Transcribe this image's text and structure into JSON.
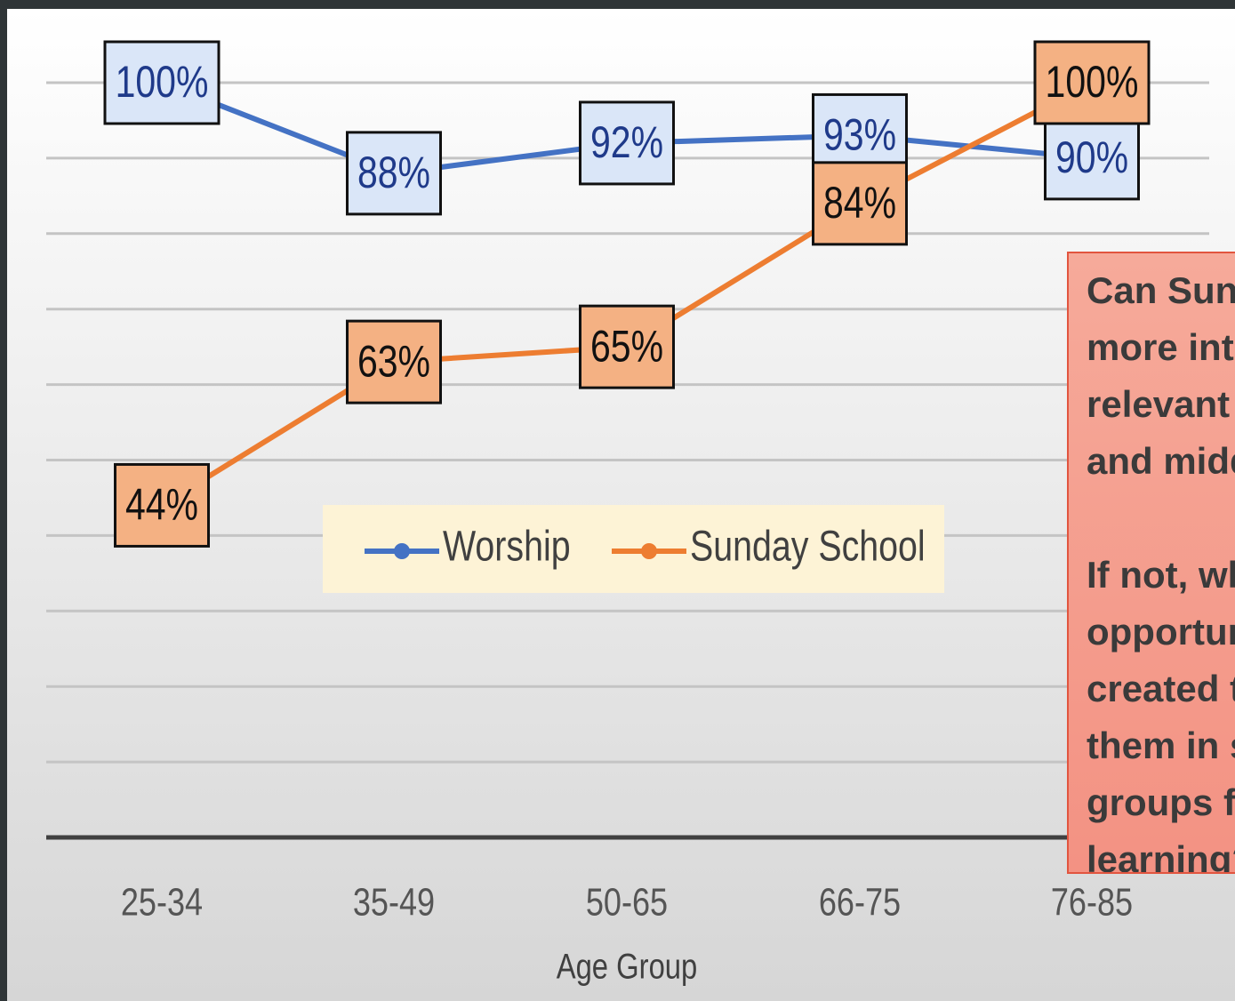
{
  "chart_data": {
    "type": "line",
    "x_label": "Age Group",
    "categories": [
      "25-34",
      "35-49",
      "50-65",
      "66-75",
      "76-85"
    ],
    "series": [
      {
        "name": "Worship",
        "color": "#4472c4",
        "label_fill": "#dae6f8",
        "label_color": "#1f3a8a",
        "values": [
          100,
          88,
          92,
          93,
          90
        ],
        "value_labels": [
          "100%",
          "88%",
          "92%",
          "93%",
          "90%"
        ]
      },
      {
        "name": "Sunday School",
        "color": "#ed7d31",
        "label_fill": "#f4b183",
        "label_color": "#111111",
        "values": [
          44,
          63,
          65,
          84,
          100
        ],
        "value_labels": [
          "44%",
          "63%",
          "65%",
          "84%",
          "100%"
        ]
      }
    ],
    "ylim": [
      0,
      100
    ],
    "yticks": [
      0,
      10,
      20,
      30,
      40,
      50,
      60,
      70,
      80,
      90,
      100
    ],
    "grid": true,
    "legend": "center",
    "callout": [
      "Can Sunday",
      "more interesting",
      "relevant to",
      "and middle",
      "",
      "If not, what",
      "opportunities",
      "created to",
      "them in small",
      "groups for",
      "learning?"
    ]
  }
}
